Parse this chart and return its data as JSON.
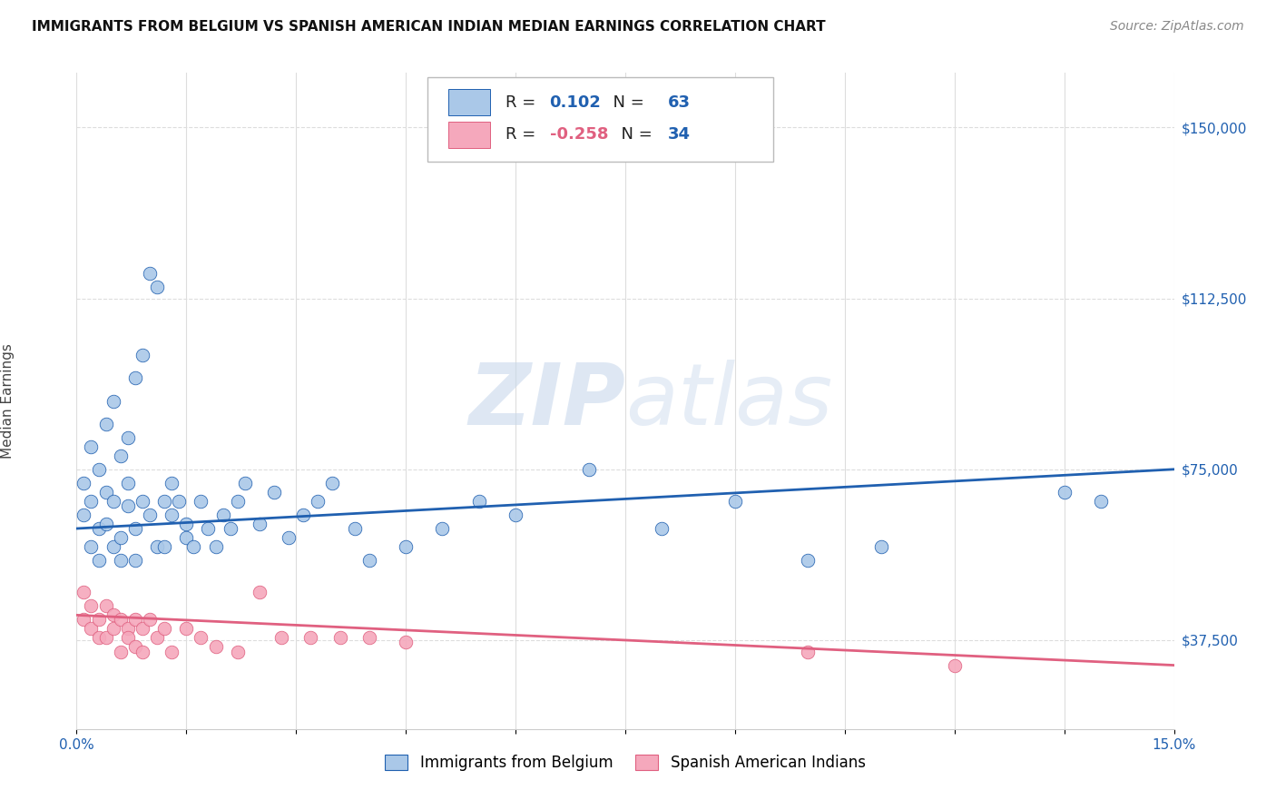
{
  "title": "IMMIGRANTS FROM BELGIUM VS SPANISH AMERICAN INDIAN MEDIAN EARNINGS CORRELATION CHART",
  "source": "Source: ZipAtlas.com",
  "ylabel": "Median Earnings",
  "xlim": [
    0.0,
    0.15
  ],
  "ylim": [
    18000,
    162000
  ],
  "yticks": [
    37500,
    75000,
    112500,
    150000
  ],
  "ytick_labels": [
    "$37,500",
    "$75,000",
    "$112,500",
    "$150,000"
  ],
  "blue_R": "0.102",
  "blue_N": "63",
  "pink_R": "-0.258",
  "pink_N": "34",
  "blue_color": "#aac8e8",
  "pink_color": "#f5a8bc",
  "blue_line_color": "#2060b0",
  "pink_line_color": "#e06080",
  "watermark": "ZIPatlas",
  "legend1": "Immigrants from Belgium",
  "legend2": "Spanish American Indians",
  "blue_scatter_x": [
    0.001,
    0.001,
    0.002,
    0.002,
    0.002,
    0.003,
    0.003,
    0.003,
    0.004,
    0.004,
    0.004,
    0.005,
    0.005,
    0.005,
    0.006,
    0.006,
    0.006,
    0.007,
    0.007,
    0.007,
    0.008,
    0.008,
    0.008,
    0.009,
    0.009,
    0.01,
    0.01,
    0.011,
    0.011,
    0.012,
    0.012,
    0.013,
    0.013,
    0.014,
    0.015,
    0.015,
    0.016,
    0.017,
    0.018,
    0.019,
    0.02,
    0.021,
    0.022,
    0.023,
    0.025,
    0.027,
    0.029,
    0.031,
    0.033,
    0.035,
    0.038,
    0.04,
    0.045,
    0.05,
    0.055,
    0.06,
    0.07,
    0.08,
    0.09,
    0.1,
    0.11,
    0.135,
    0.14
  ],
  "blue_scatter_y": [
    65000,
    72000,
    58000,
    68000,
    80000,
    62000,
    75000,
    55000,
    70000,
    63000,
    85000,
    58000,
    90000,
    68000,
    78000,
    55000,
    60000,
    67000,
    72000,
    82000,
    95000,
    62000,
    55000,
    100000,
    68000,
    118000,
    65000,
    115000,
    58000,
    68000,
    58000,
    65000,
    72000,
    68000,
    63000,
    60000,
    58000,
    68000,
    62000,
    58000,
    65000,
    62000,
    68000,
    72000,
    63000,
    70000,
    60000,
    65000,
    68000,
    72000,
    62000,
    55000,
    58000,
    62000,
    68000,
    65000,
    75000,
    62000,
    68000,
    55000,
    58000,
    70000,
    68000
  ],
  "pink_scatter_x": [
    0.001,
    0.001,
    0.002,
    0.002,
    0.003,
    0.003,
    0.004,
    0.004,
    0.005,
    0.005,
    0.006,
    0.006,
    0.007,
    0.007,
    0.008,
    0.008,
    0.009,
    0.009,
    0.01,
    0.011,
    0.012,
    0.013,
    0.015,
    0.017,
    0.019,
    0.022,
    0.025,
    0.028,
    0.032,
    0.036,
    0.04,
    0.045,
    0.1,
    0.12
  ],
  "pink_scatter_y": [
    48000,
    42000,
    45000,
    40000,
    42000,
    38000,
    45000,
    38000,
    43000,
    40000,
    42000,
    35000,
    40000,
    38000,
    42000,
    36000,
    40000,
    35000,
    42000,
    38000,
    40000,
    35000,
    40000,
    38000,
    36000,
    35000,
    48000,
    38000,
    38000,
    38000,
    38000,
    37000,
    35000,
    32000
  ],
  "grid_color": "#dddddd",
  "title_fontsize": 11,
  "source_fontsize": 10,
  "tick_fontsize": 11,
  "ylabel_fontsize": 11
}
